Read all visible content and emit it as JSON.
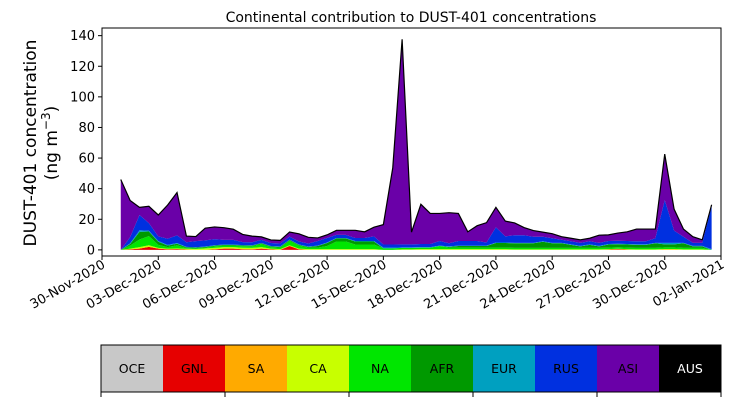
{
  "chart_data": {
    "type": "area",
    "title": "Continental contribution to DUST-401 concentrations",
    "ylabel_line1": "DUST-401 concentration",
    "ylabel_line2_prefix": "(ng m",
    "ylabel_line2_sup": "−3",
    "ylabel_line2_suffix": ")",
    "xlabel": "",
    "stacked": true,
    "grid": false,
    "x_dates": [
      "2020-12-01",
      "2020-12-02",
      "2020-12-03",
      "2020-12-04",
      "2020-12-05",
      "2020-12-06",
      "2020-12-07",
      "2020-12-08",
      "2020-12-09",
      "2020-12-10",
      "2020-12-11",
      "2020-12-12",
      "2020-12-13",
      "2020-12-14",
      "2020-12-15",
      "2020-12-16",
      "2020-12-17",
      "2020-12-18",
      "2020-12-19",
      "2020-12-20",
      "2020-12-21",
      "2020-12-22",
      "2020-12-23",
      "2020-12-24",
      "2020-12-25",
      "2020-12-26",
      "2020-12-27",
      "2020-12-28",
      "2020-12-29",
      "2020-12-30",
      "2020-12-31",
      "2021-01-01"
    ],
    "x_range": [
      "2020-11-30T00:00",
      "2021-01-02T00:00"
    ],
    "ylim": [
      -4,
      145
    ],
    "ytick_values": [
      0,
      20,
      40,
      60,
      80,
      100,
      120,
      140
    ],
    "ytick_labels": [
      "0",
      "20",
      "40",
      "60",
      "80",
      "100",
      "120",
      "140"
    ],
    "xtick_dates": [
      "2020-11-30",
      "2020-12-03",
      "2020-12-06",
      "2020-12-09",
      "2020-12-12",
      "2020-12-15",
      "2020-12-18",
      "2020-12-21",
      "2020-12-24",
      "2020-12-27",
      "2020-12-30",
      "2021-01-02"
    ],
    "xtick_labels": [
      "30-Nov-2020",
      "03-Dec-2020",
      "06-Dec-2020",
      "09-Dec-2020",
      "12-Dec-2020",
      "15-Dec-2020",
      "18-Dec-2020",
      "21-Dec-2020",
      "24-Dec-2020",
      "27-Dec-2020",
      "30-Dec-2020",
      "02-Jan-2021"
    ],
    "x": [
      "2020-12-01T00:00",
      "2020-12-01T12:00",
      "2020-12-02T00:00",
      "2020-12-02T12:00",
      "2020-12-03T00:00",
      "2020-12-03T12:00",
      "2020-12-04T00:00",
      "2020-12-04T12:00",
      "2020-12-05T00:00",
      "2020-12-05T12:00",
      "2020-12-06T00:00",
      "2020-12-06T12:00",
      "2020-12-07T00:00",
      "2020-12-07T12:00",
      "2020-12-08T00:00",
      "2020-12-08T12:00",
      "2020-12-09T00:00",
      "2020-12-09T12:00",
      "2020-12-10T00:00",
      "2020-12-10T12:00",
      "2020-12-11T00:00",
      "2020-12-11T12:00",
      "2020-12-12T00:00",
      "2020-12-12T12:00",
      "2020-12-13T00:00",
      "2020-12-13T12:00",
      "2020-12-14T00:00",
      "2020-12-14T12:00",
      "2020-12-15T00:00",
      "2020-12-15T12:00",
      "2020-12-16T00:00",
      "2020-12-16T12:00",
      "2020-12-17T00:00",
      "2020-12-17T12:00",
      "2020-12-18T00:00",
      "2020-12-18T12:00",
      "2020-12-19T00:00",
      "2020-12-19T12:00",
      "2020-12-20T00:00",
      "2020-12-20T12:00",
      "2020-12-21T00:00",
      "2020-12-21T12:00",
      "2020-12-22T00:00",
      "2020-12-22T12:00",
      "2020-12-23T00:00",
      "2020-12-23T12:00",
      "2020-12-24T00:00",
      "2020-12-24T12:00",
      "2020-12-25T00:00",
      "2020-12-25T12:00",
      "2020-12-26T00:00",
      "2020-12-26T12:00",
      "2020-12-27T00:00",
      "2020-12-27T12:00",
      "2020-12-28T00:00",
      "2020-12-28T12:00",
      "2020-12-29T00:00",
      "2020-12-29T12:00",
      "2020-12-30T00:00",
      "2020-12-30T12:00",
      "2020-12-31T00:00",
      "2020-12-31T12:00",
      "2021-01-01T00:00",
      "2021-01-01T12:00"
    ],
    "series": [
      {
        "name": "OCE",
        "color": "#c8c8c8",
        "values": [
          0,
          0,
          0,
          0,
          0,
          0,
          0,
          0,
          0,
          0,
          0,
          0,
          0,
          0,
          0,
          0,
          0,
          0,
          0,
          0,
          0,
          0,
          0,
          0,
          0,
          0,
          0,
          0,
          0,
          0,
          0,
          0,
          0,
          0,
          0,
          0,
          0,
          0,
          0,
          0,
          0,
          0,
          0,
          0,
          0,
          0,
          0,
          0,
          0,
          0,
          0,
          0,
          0,
          0,
          0,
          0,
          0,
          0,
          0,
          0,
          0,
          0,
          0,
          0
        ]
      },
      {
        "name": "GNL",
        "color": "#e60000",
        "values": [
          0,
          0.3,
          0.8,
          2,
          0.8,
          0.3,
          0.5,
          0.2,
          0,
          0,
          0.3,
          0.8,
          0.8,
          0.4,
          0.3,
          0.8,
          0.3,
          0,
          2.5,
          0.3,
          0,
          0,
          0,
          0,
          0,
          0,
          0,
          0,
          0,
          0,
          0,
          0,
          0,
          0,
          0,
          0,
          0,
          0,
          0,
          0,
          0,
          0,
          0,
          0,
          0,
          0,
          0,
          0,
          0,
          0,
          0,
          0,
          0.2,
          0.4,
          0.2,
          0,
          0,
          0,
          0,
          0,
          0,
          0,
          0,
          0
        ]
      },
      {
        "name": "SA",
        "color": "#ffaa00",
        "values": [
          0,
          0,
          0,
          0,
          0,
          0,
          0,
          0,
          0,
          0,
          0,
          0,
          0,
          0,
          0,
          0,
          0,
          0,
          0,
          0,
          0,
          0,
          0,
          0,
          0,
          0,
          0,
          0,
          0,
          0,
          0,
          0,
          0,
          0,
          0,
          0,
          0,
          0,
          0,
          0,
          0,
          0,
          0,
          0,
          0,
          0,
          0,
          0,
          0,
          0,
          0,
          0,
          0,
          0,
          0,
          0,
          0,
          0,
          0.3,
          0.3,
          0,
          0,
          0,
          0
        ]
      },
      {
        "name": "CA",
        "color": "#c8ff00",
        "values": [
          0,
          0.5,
          1,
          1,
          0.5,
          0.5,
          0.5,
          0.5,
          0.5,
          1,
          1,
          1,
          1,
          1,
          1,
          1,
          0.5,
          0.5,
          0.5,
          0.5,
          0.5,
          0.5,
          0.5,
          0.5,
          0.5,
          0.5,
          0.5,
          0.5,
          0,
          0,
          0.3,
          0.3,
          0.5,
          0.5,
          0.5,
          0.5,
          0.5,
          0.5,
          0.5,
          0.5,
          0.5,
          0.5,
          0.3,
          0.3,
          0.3,
          0.3,
          0.3,
          0.3,
          0.3,
          0.3,
          0.3,
          0.3,
          0.3,
          0.3,
          0.3,
          0.3,
          0.3,
          0.3,
          0.3,
          0.3,
          0.3,
          0.3,
          0.3,
          0
        ]
      },
      {
        "name": "NA",
        "color": "#00e600",
        "values": [
          0,
          2,
          5,
          6,
          2,
          1,
          2,
          0.5,
          0.5,
          0.5,
          1,
          1,
          1,
          1,
          1,
          2,
          1,
          1,
          3,
          2,
          1,
          1,
          2,
          5,
          5,
          3,
          3,
          3,
          1,
          1,
          1,
          1,
          1,
          1,
          2,
          1,
          1,
          1,
          1,
          1,
          1,
          1,
          1,
          1,
          1,
          1,
          1,
          1,
          1,
          1,
          1,
          1,
          1,
          1,
          1,
          1,
          1,
          1,
          1,
          1,
          1,
          1,
          1,
          0
        ]
      },
      {
        "name": "AFR",
        "color": "#009900",
        "values": [
          0,
          1,
          5,
          3,
          2,
          1,
          1,
          0.5,
          0.5,
          0.5,
          0.5,
          0.5,
          0.5,
          0.5,
          0.5,
          0.5,
          0.5,
          0.5,
          0.5,
          0.5,
          0.5,
          1,
          2,
          2,
          2,
          2,
          2,
          2,
          0,
          0,
          0,
          0,
          0,
          0,
          0,
          0.5,
          1,
          1,
          1,
          1,
          3,
          3,
          3,
          3,
          3,
          4,
          3,
          3,
          2,
          1,
          2,
          1,
          2,
          2,
          2,
          2,
          2,
          3,
          2,
          2,
          3,
          1,
          1,
          0
        ]
      },
      {
        "name": "EUR",
        "color": "#00a0c0",
        "values": [
          0,
          0.5,
          1,
          0.5,
          0.5,
          0.5,
          0.5,
          0.3,
          0.2,
          0.2,
          0.2,
          0.2,
          0.2,
          0.2,
          0.2,
          0.2,
          0.2,
          0.2,
          0.2,
          0.2,
          0.2,
          0.3,
          0.3,
          0.3,
          0.3,
          0.3,
          0.3,
          0.3,
          0.5,
          0.5,
          0.3,
          0.3,
          0.3,
          0.3,
          0.3,
          0.3,
          0.3,
          0.3,
          0.3,
          0.3,
          0.3,
          0.3,
          0.3,
          0.3,
          0.3,
          0.3,
          0.3,
          0.3,
          0.3,
          0.3,
          0.3,
          0.3,
          0.3,
          0.3,
          0.3,
          0.3,
          0.3,
          0.3,
          1,
          1,
          0.3,
          0.3,
          0.3,
          0.5
        ]
      },
      {
        "name": "RUS",
        "color": "#0030e0",
        "values": [
          0,
          4,
          10,
          5,
          3,
          4,
          5,
          3,
          4,
          4,
          4,
          3,
          3,
          2,
          2,
          2,
          2,
          2,
          2,
          2,
          2,
          3,
          3,
          2,
          2,
          2,
          2,
          3,
          2,
          2,
          2,
          2,
          2,
          2,
          3,
          2,
          3,
          3,
          3,
          2,
          10,
          4,
          5,
          5,
          4,
          3,
          3,
          2,
          2,
          2,
          2,
          2,
          2,
          2,
          2,
          2,
          2,
          3,
          28,
          8,
          4,
          2,
          2,
          28
        ]
      },
      {
        "name": "ASI",
        "color": "#6a00a8",
        "values": [
          46,
          24,
          5,
          11,
          14,
          22,
          28,
          4,
          3,
          8,
          8,
          8,
          7,
          5,
          4,
          2,
          2,
          2,
          3,
          5,
          4,
          2,
          2,
          3,
          3,
          5,
          4,
          6,
          13,
          50,
          134,
          8,
          26,
          20,
          18,
          20,
          18,
          6,
          10,
          13,
          13,
          10,
          8,
          5,
          4,
          3,
          3,
          2,
          2,
          2,
          2,
          5,
          4,
          5,
          6,
          8,
          8,
          6,
          30,
          14,
          5,
          4,
          2,
          1
        ]
      },
      {
        "name": "AUS",
        "color": "#000000",
        "values": [
          0,
          0,
          0,
          0,
          0,
          0,
          0,
          0,
          0,
          0,
          0,
          0,
          0,
          0,
          0,
          0,
          0,
          0,
          0,
          0,
          0,
          0,
          0,
          0,
          0,
          0,
          0,
          0,
          0,
          0,
          0,
          0,
          0,
          0,
          0,
          0,
          0,
          0,
          0,
          0,
          0,
          0,
          0,
          0,
          0,
          0,
          0,
          0,
          0,
          0,
          0,
          0,
          0,
          0,
          0,
          0,
          0,
          0,
          0,
          0,
          0,
          0,
          0,
          0
        ]
      }
    ],
    "legend": {
      "placement": "bottom",
      "labels": [
        "OCE",
        "GNL",
        "SA",
        "CA",
        "NA",
        "AFR",
        "EUR",
        "RUS",
        "ASI",
        "AUS"
      ],
      "colors": [
        "#c8c8c8",
        "#e60000",
        "#ffaa00",
        "#c8ff00",
        "#00e600",
        "#009900",
        "#00a0c0",
        "#0030e0",
        "#6a00a8",
        "#000000"
      ],
      "text_colors": [
        "#000000",
        "#000000",
        "#000000",
        "#000000",
        "#000000",
        "#000000",
        "#000000",
        "#000000",
        "#000000",
        "#ffffff"
      ]
    }
  }
}
